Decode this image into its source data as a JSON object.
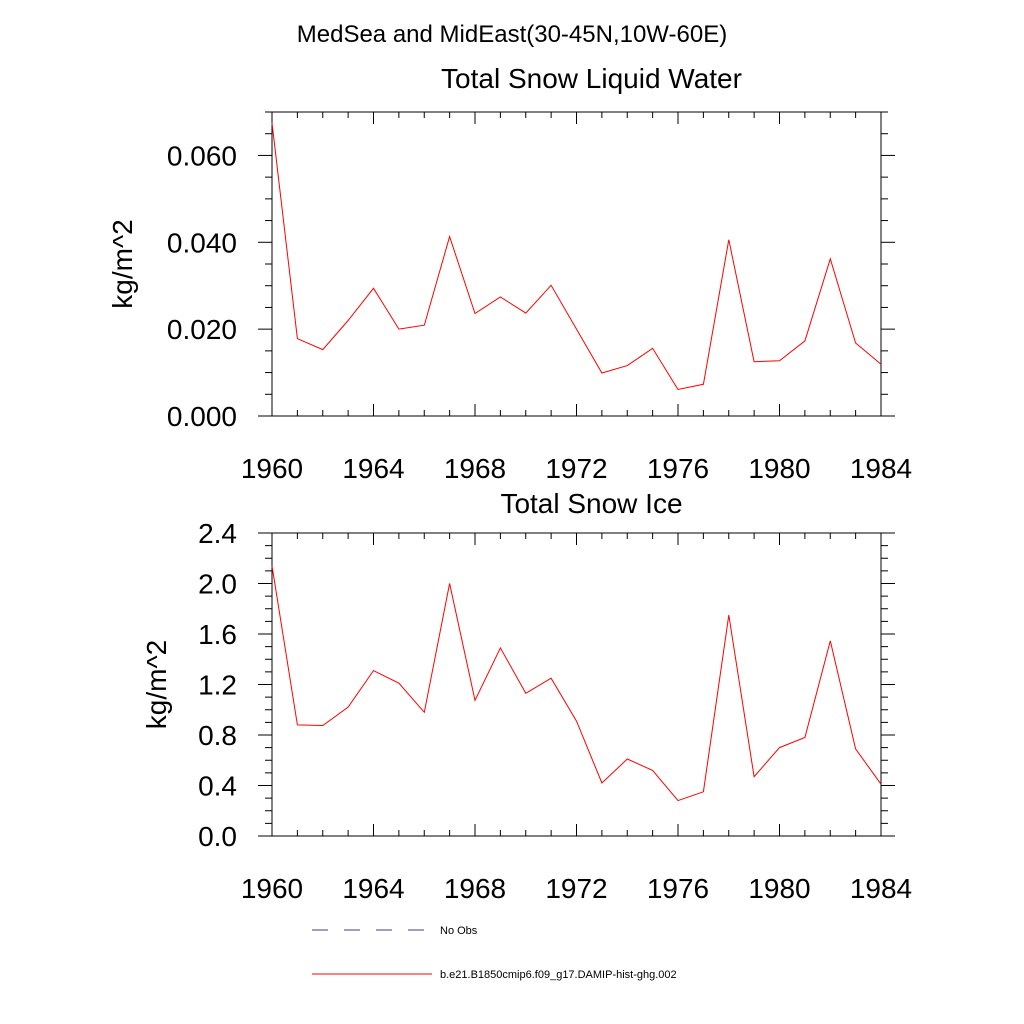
{
  "header": {
    "title": "MedSea and MidEast(30-45N,10W-60E)"
  },
  "legend": {
    "items": [
      {
        "label": "No Obs",
        "color": "#3a3a88",
        "style": "dashed"
      },
      {
        "label": "b.e21.B1850cmip6.f09_g17.DAMIP-hist-ghg.002",
        "color": "#ff0000",
        "style": "solid"
      }
    ]
  },
  "chart_data": [
    {
      "type": "line",
      "title": "Total Snow Liquid Water",
      "xlabel": "",
      "ylabel": "kg/m^2",
      "xlim": [
        1960,
        1984
      ],
      "ylim": [
        0,
        0.07
      ],
      "xticks": [
        1960,
        1964,
        1968,
        1972,
        1976,
        1980,
        1984
      ],
      "xtick_labels": [
        "1960",
        "1964",
        "1968",
        "1972",
        "1976",
        "1980",
        "1984"
      ],
      "yticks": [
        0,
        0.02,
        0.04,
        0.06
      ],
      "ytick_labels": [
        "0.000",
        "0.020",
        "0.040",
        "0.060"
      ],
      "yminor_step": 0.005,
      "color": "#ff0000",
      "x": [
        1960,
        1961,
        1962,
        1963,
        1964,
        1965,
        1966,
        1967,
        1968,
        1969,
        1970,
        1971,
        1972,
        1973,
        1974,
        1975,
        1976,
        1977,
        1978,
        1979,
        1980,
        1981,
        1982,
        1983,
        1984
      ],
      "series": [
        {
          "values": [
            0.0675,
            0.0178,
            0.0153,
            0.022,
            0.0294,
            0.02,
            0.0209,
            0.0413,
            0.0236,
            0.0274,
            0.0237,
            0.0301,
            0.02,
            0.0099,
            0.0116,
            0.0156,
            0.0061,
            0.0073,
            0.0406,
            0.0125,
            0.0127,
            0.0173,
            0.0362,
            0.0168,
            0.0119
          ]
        }
      ]
    },
    {
      "type": "line",
      "title": "Total Snow Ice",
      "xlabel": "",
      "ylabel": "kg/m^2",
      "xlim": [
        1960,
        1984
      ],
      "ylim": [
        0,
        2.4
      ],
      "xticks": [
        1960,
        1964,
        1968,
        1972,
        1976,
        1980,
        1984
      ],
      "xtick_labels": [
        "1960",
        "1964",
        "1968",
        "1972",
        "1976",
        "1980",
        "1984"
      ],
      "yticks": [
        0,
        0.4,
        0.8,
        1.2,
        1.6,
        2.0,
        2.4
      ],
      "ytick_labels": [
        "0.0",
        "0.4",
        "0.8",
        "1.2",
        "1.6",
        "2.0",
        "2.4"
      ],
      "yminor_step": 0.1,
      "color": "#ff0000",
      "x": [
        1960,
        1961,
        1962,
        1963,
        1964,
        1965,
        1966,
        1967,
        1968,
        1969,
        1970,
        1971,
        1972,
        1973,
        1974,
        1975,
        1976,
        1977,
        1978,
        1979,
        1980,
        1981,
        1982,
        1983,
        1984
      ],
      "series": [
        {
          "values": [
            2.14,
            0.88,
            0.875,
            1.02,
            1.31,
            1.21,
            0.98,
            2.0,
            1.075,
            1.49,
            1.13,
            1.25,
            0.91,
            0.42,
            0.61,
            0.52,
            0.28,
            0.35,
            1.75,
            0.47,
            0.7,
            0.78,
            1.545,
            0.69,
            0.41
          ]
        }
      ]
    }
  ]
}
